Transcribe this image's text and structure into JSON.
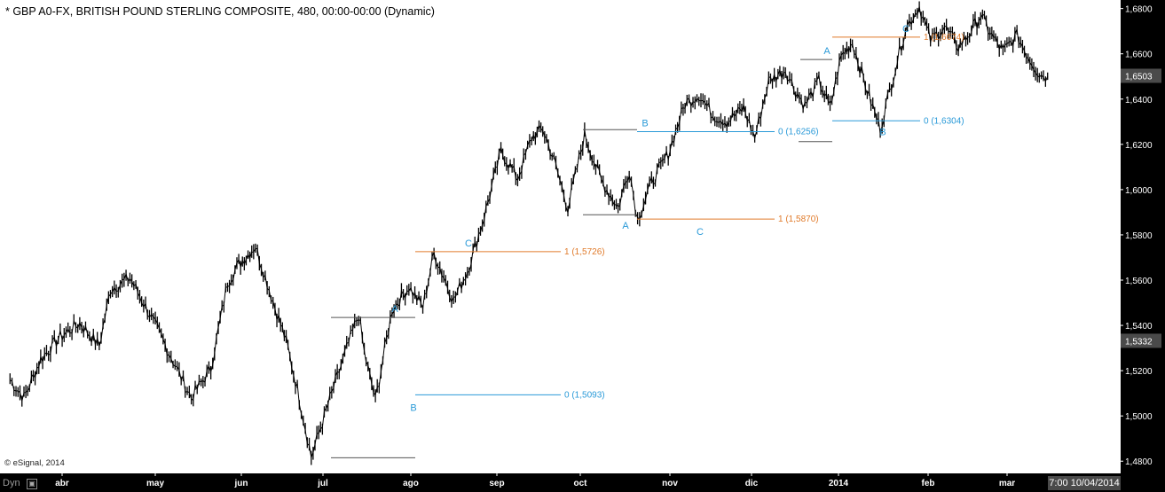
{
  "header": {
    "title": "* GBP A0-FX, BRITISH POUND STERLING COMPOSITE, 480, 00:00-00:00 (Dynamic)",
    "copyright": "© eSignal, 2014",
    "dyn_label": "Dyn",
    "date_box": "7:00 10/04/2014"
  },
  "colors": {
    "price": "#000000",
    "grid": "#cfcfcf",
    "level_blue": "#2a9ad8",
    "level_orange": "#e07a2a",
    "marker_gray": "#555555",
    "axis_bg": "#000000",
    "axis_text": "#ffffff",
    "price_box": "#4a4a4a"
  },
  "chart_data": {
    "type": "line",
    "title": "* GBP A0-FX, BRITISH POUND STERLING COMPOSITE, 480, 00:00-00:00 (Dynamic)",
    "xlabel": "",
    "ylabel": "",
    "ylim": [
      1.475,
      1.683
    ],
    "grid": false,
    "legend": "none",
    "x_ticks": [
      "abr",
      "may",
      "jun",
      "jul",
      "ago",
      "sep",
      "oct",
      "nov",
      "dic",
      "2014",
      "feb",
      "mar"
    ],
    "y_ticks": [
      "1,4800",
      "1,5000",
      "1,5200",
      "1,5400",
      "1,5600",
      "1,5800",
      "1,6000",
      "1,6200",
      "1,6400",
      "1,6600",
      "1,6800"
    ],
    "y_tick_values": [
      1.48,
      1.5,
      1.52,
      1.54,
      1.56,
      1.58,
      1.6,
      1.62,
      1.64,
      1.66,
      1.68
    ],
    "price_labels": [
      {
        "text": "1,6503",
        "value": 1.6503
      },
      {
        "text": "1,5332",
        "value": 1.5332
      }
    ],
    "series": [
      {
        "x": [
          "2013-03-28",
          "2013-04-02",
          "2013-04-08",
          "2013-04-15",
          "2013-04-22",
          "2013-04-29",
          "2013-05-03",
          "2013-05-10",
          "2013-05-17",
          "2013-05-24",
          "2013-06-01",
          "2013-06-08",
          "2013-06-14",
          "2013-06-18",
          "2013-06-24",
          "2013-07-01",
          "2013-07-05",
          "2013-07-09",
          "2013-07-14",
          "2013-07-20",
          "2013-07-26",
          "2013-07-31",
          "2013-08-02",
          "2013-08-06",
          "2013-08-12",
          "2013-08-18",
          "2013-08-23",
          "2013-08-27",
          "2013-09-03",
          "2013-09-08",
          "2013-09-14",
          "2013-09-20",
          "2013-09-26",
          "2013-10-01",
          "2013-10-05",
          "2013-10-09",
          "2013-10-14",
          "2013-10-20",
          "2013-10-26",
          "2013-11-01",
          "2013-11-05",
          "2013-11-08",
          "2013-11-13",
          "2013-11-19",
          "2013-11-25",
          "2013-11-30",
          "2013-12-05",
          "2013-12-10",
          "2013-12-16",
          "2013-12-20",
          "2013-12-25",
          "2013-12-31",
          "2014-01-03",
          "2014-01-07",
          "2014-01-12",
          "2014-01-16",
          "2014-01-20",
          "2014-01-24",
          "2014-01-30",
          "2014-02-03",
          "2014-02-07",
          "2014-02-12",
          "2014-02-17",
          "2014-02-21",
          "2014-02-26",
          "2014-03-03",
          "2014-03-07",
          "2014-03-11",
          "2014-03-15",
          "2014-03-19",
          "2014-03-24",
          "2014-03-28",
          "2014-04-01",
          "2014-04-04"
        ],
        "values": [
          1.516,
          1.508,
          1.525,
          1.535,
          1.541,
          1.531,
          1.556,
          1.561,
          1.545,
          1.528,
          1.508,
          1.521,
          1.559,
          1.567,
          1.575,
          1.548,
          1.533,
          1.512,
          1.482,
          1.505,
          1.527,
          1.545,
          1.528,
          1.507,
          1.547,
          1.557,
          1.548,
          1.572,
          1.551,
          1.564,
          1.588,
          1.617,
          1.605,
          1.623,
          1.627,
          1.613,
          1.592,
          1.624,
          1.604,
          1.592,
          1.609,
          1.587,
          1.603,
          1.616,
          1.638,
          1.642,
          1.633,
          1.63,
          1.636,
          1.623,
          1.648,
          1.653,
          1.645,
          1.637,
          1.648,
          1.636,
          1.659,
          1.665,
          1.641,
          1.627,
          1.647,
          1.671,
          1.681,
          1.666,
          1.672,
          1.663,
          1.669,
          1.677,
          1.668,
          1.661,
          1.668,
          1.659,
          1.651,
          1.65
        ]
      }
    ],
    "levels": [
      {
        "label": "0 (1,5093)",
        "value": 1.5093,
        "color": "blue"
      },
      {
        "label": "1 (1,5726)",
        "value": 1.5726,
        "color": "orange"
      },
      {
        "label": "1 (1,5870)",
        "value": 1.587,
        "color": "orange"
      },
      {
        "label": "0 (1,6256)",
        "value": 1.6256,
        "color": "blue"
      },
      {
        "label": "1 (1,6674)",
        "value": 1.6674,
        "color": "orange"
      },
      {
        "label": "0 (1,6304)",
        "value": 1.6304,
        "color": "blue"
      }
    ],
    "markers": [
      {
        "value": 1.5435
      },
      {
        "value": 1.4815
      },
      {
        "value": 1.5889
      },
      {
        "value": 1.6265
      },
      {
        "value": 1.6212
      },
      {
        "value": 1.6575
      }
    ],
    "wave_labels": [
      {
        "text": "A",
        "value": 1.5435
      },
      {
        "text": "B",
        "value": 1.5093
      },
      {
        "text": "C",
        "value": 1.5726
      },
      {
        "text": "B",
        "value": 1.6256
      },
      {
        "text": "A",
        "value": 1.5889
      },
      {
        "text": "C",
        "value": 1.587
      },
      {
        "text": "A",
        "value": 1.6575
      },
      {
        "text": "B",
        "value": 1.6304
      },
      {
        "text": "C",
        "value": 1.6674
      }
    ]
  }
}
